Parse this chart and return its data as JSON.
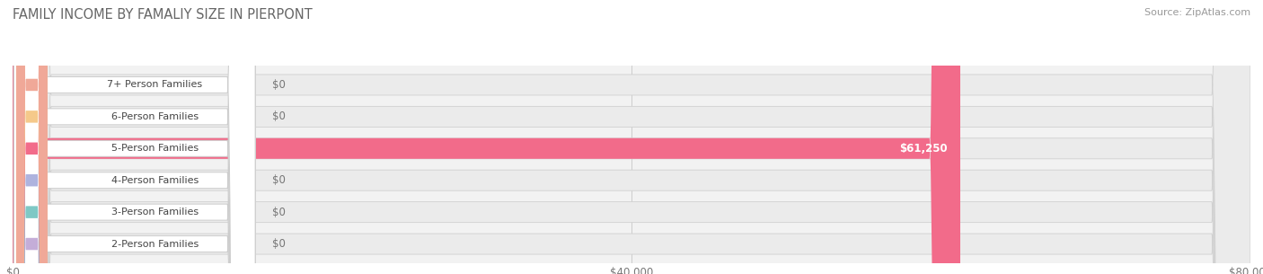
{
  "title": "FAMILY INCOME BY FAMALIY SIZE IN PIERPONT",
  "source": "Source: ZipAtlas.com",
  "categories": [
    "2-Person Families",
    "3-Person Families",
    "4-Person Families",
    "5-Person Families",
    "6-Person Families",
    "7+ Person Families"
  ],
  "values": [
    0,
    0,
    0,
    61250,
    0,
    0
  ],
  "bar_colors": [
    "#c4add8",
    "#7ec8c5",
    "#aeb3de",
    "#f26b8a",
    "#f5c98a",
    "#f0a898"
  ],
  "xlim": [
    0,
    80000
  ],
  "xticks": [
    0,
    40000,
    80000
  ],
  "xticklabels": [
    "$0",
    "$40,000",
    "$80,000"
  ],
  "title_fontsize": 10.5,
  "source_fontsize": 8,
  "bar_height": 0.65,
  "fig_bg_color": "#ffffff",
  "plot_bg_color": "#f2f2f2"
}
